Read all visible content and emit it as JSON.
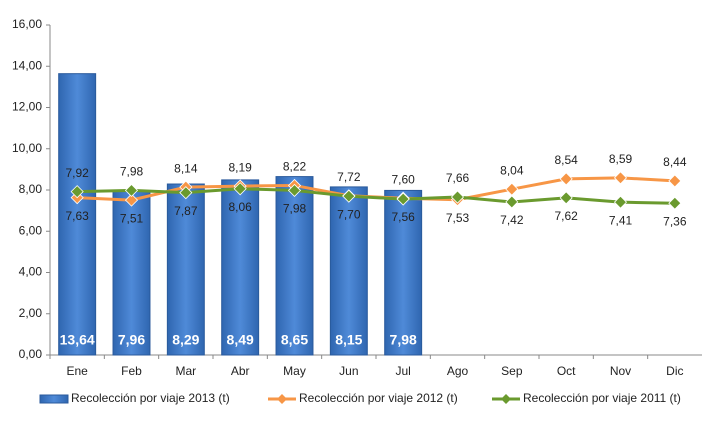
{
  "chart_data": {
    "type": "bar-line",
    "categories": [
      "Ene",
      "Feb",
      "Mar",
      "Abr",
      "May",
      "Jun",
      "Jul",
      "Ago",
      "Sep",
      "Oct",
      "Nov",
      "Dic"
    ],
    "series": [
      {
        "name": "Recolección por viaje 2013 (t)",
        "type": "bar",
        "color": "#3c78c8",
        "values": [
          13.64,
          7.96,
          8.29,
          8.49,
          8.65,
          8.15,
          7.98,
          null,
          null,
          null,
          null,
          null
        ],
        "value_labels": [
          "13,64",
          "7,96",
          "8,29",
          "8,49",
          "8,65",
          "8,15",
          "7,98",
          null,
          null,
          null,
          null,
          null
        ]
      },
      {
        "name": "Recolección por viaje 2012 (t)",
        "type": "line",
        "color": "#f79646",
        "values": [
          7.63,
          7.51,
          8.14,
          8.19,
          8.22,
          7.72,
          7.6,
          7.53,
          8.04,
          8.54,
          8.59,
          8.44
        ],
        "value_labels": [
          "7,63",
          "7,51",
          "8,14",
          "8,19",
          "8,22",
          "7,72",
          "7,60",
          "7,53",
          "8,04",
          "8,54",
          "8,59",
          "8,44"
        ]
      },
      {
        "name": "Recolección por viaje 2011 (t)",
        "type": "line",
        "color": "#6a9a2e",
        "values": [
          7.92,
          7.98,
          7.87,
          8.06,
          7.98,
          7.7,
          7.56,
          7.66,
          7.42,
          7.62,
          7.41,
          7.36
        ],
        "value_labels": [
          "7,92",
          "7,98",
          "7,87",
          "8,06",
          "7,98",
          "7,70",
          "7,56",
          "7,66",
          "7,42",
          "7,62",
          "7,41",
          "7,36"
        ]
      }
    ],
    "ylim": [
      0,
      16
    ],
    "yticks": [
      {
        "value": 0,
        "label": "0,00"
      },
      {
        "value": 2,
        "label": "2,00"
      },
      {
        "value": 4,
        "label": "4,00"
      },
      {
        "value": 6,
        "label": "6,00"
      },
      {
        "value": 8,
        "label": "8,00"
      },
      {
        "value": 10,
        "label": "10,00"
      },
      {
        "value": 12,
        "label": "12,00"
      },
      {
        "value": 14,
        "label": "14,00"
      },
      {
        "value": 16,
        "label": "16,00"
      }
    ],
    "grid": false,
    "legend": "bottom"
  }
}
